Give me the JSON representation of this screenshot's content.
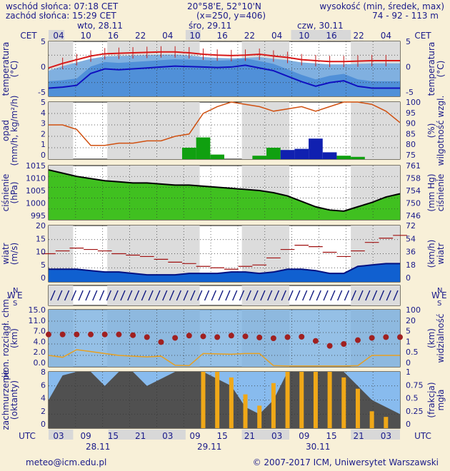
{
  "header": {
    "sunrise": "wschód słońca: 07:18 CET",
    "sunset": "zachód słońca: 15:29 CET",
    "coords": "20°58'E, 52°10'N",
    "grid": "(x=250, y=406)",
    "elev_label": "wysokość (min, średek, max)",
    "elev_values": "74 - 92 - 113 m"
  },
  "top_axis": {
    "tz": "CET",
    "days": [
      "wto, 28.11",
      "śro, 29.11",
      "czw, 30.11"
    ],
    "hours": [
      "04",
      "10",
      "16",
      "22",
      "04",
      "10",
      "16",
      "22",
      "04",
      "10",
      "16",
      "22",
      "04"
    ]
  },
  "bottom_axis": {
    "tz": "UTC",
    "hours": [
      "03",
      "09",
      "15",
      "21",
      "03",
      "09",
      "15",
      "21",
      "03",
      "09",
      "15",
      "21",
      "03"
    ],
    "days": [
      "28.11",
      "29.11",
      "30.11"
    ]
  },
  "panels": {
    "temperature": {
      "left_label": [
        "temperatura",
        "(°C)"
      ],
      "right_label": [
        "temperatura",
        "(°C)"
      ],
      "ticks": [
        "5",
        "0",
        "-5"
      ]
    },
    "precip": {
      "left_label": [
        "opad",
        "(mm/h, kg/m²/h)"
      ],
      "right_label": [
        "(%)",
        "wilgotność wzgl."
      ],
      "ticks_left": [
        "5",
        "4",
        "3",
        "2",
        "1",
        "0"
      ],
      "ticks_right": [
        "100",
        "95",
        "90",
        "85",
        "80",
        "75"
      ]
    },
    "pressure": {
      "left_label": [
        "ciśnienie",
        "(hPa)"
      ],
      "right_label": [
        "(mm Hg)",
        "ciśnienie"
      ],
      "ticks_left": [
        "1015",
        "1010",
        "1005",
        "1000",
        "995"
      ],
      "ticks_right": [
        "761",
        "758",
        "754",
        "750",
        "746"
      ]
    },
    "wind": {
      "left_label": [
        "wiatr",
        "(m/s)"
      ],
      "right_label": [
        "(km/h)",
        "wiatr"
      ],
      "ticks_left": [
        "20",
        "15",
        "10",
        "5",
        "0"
      ],
      "ticks_right": [
        "72",
        "54",
        "36",
        "18",
        "0"
      ]
    },
    "direction": {
      "compass": [
        "N",
        "W",
        "E",
        "S"
      ]
    },
    "clouds_vis": {
      "left_label": [
        "pion. rozciągł. chm.",
        "(km)"
      ],
      "right_label": [
        "(km)",
        "widzialność"
      ],
      "ticks_left": [
        "15.0",
        "11.0",
        "7.0",
        "4.0",
        "2.0",
        "0.0"
      ],
      "ticks_right": [
        "100",
        "20",
        "5",
        "1",
        "0.5",
        "0"
      ]
    },
    "cloud_cover": {
      "left_label": [
        "zachmurzenie",
        "(oktanty)"
      ],
      "right_label": [
        "(frakcja)",
        "mgła"
      ],
      "ticks_left": [
        "8",
        "6",
        "4",
        "2",
        "0"
      ],
      "ticks_right": [
        "1",
        "0.75",
        "0.5",
        "0.25",
        "0"
      ]
    }
  },
  "footer": {
    "email": "meteo@icm.edu.pl",
    "copyright": "© 2007-2017 ICM, Uniwersytet Warszawski"
  },
  "colors": {
    "temp_max": "#d81818",
    "temp_min": "#1010c0",
    "humidity": "#d05010",
    "precip": "#10a010",
    "precip_snow": "#1020b0",
    "pressure": "#000000",
    "wind_avg": "#001080",
    "wind_gust": "#a01010",
    "visibility": "#e8a020",
    "fog": "#f0a818",
    "cloud_height": "#a02020"
  },
  "chart_data": [
    {
      "type": "line",
      "title": "temperatura",
      "ylabel": "°C",
      "ylim": [
        -7,
        5
      ],
      "x": [
        "03",
        "06",
        "09",
        "12",
        "15",
        "18",
        "21",
        "00",
        "03",
        "06",
        "09",
        "12",
        "15",
        "18",
        "21",
        "00",
        "03",
        "06",
        "09",
        "12",
        "15",
        "18",
        "21",
        "00",
        "03",
        "06"
      ],
      "series": [
        {
          "name": "max",
          "values": [
            -0.8,
            0.2,
            1,
            1.8,
            2.3,
            2.4,
            2.5,
            2.6,
            2.7,
            2.7,
            2.5,
            2.2,
            2,
            1.9,
            2,
            2.2,
            1.8,
            1.5,
            1,
            0.8,
            0.6,
            0.6,
            0.7,
            0.8,
            0.8,
            0.8
          ]
        },
        {
          "name": "min",
          "values": [
            -5.2,
            -5,
            -4.6,
            -2,
            -1,
            -1.2,
            -1,
            -0.8,
            -0.6,
            -0.4,
            -0.5,
            -0.6,
            -0.7,
            -0.6,
            -0.2,
            -0.8,
            -1.4,
            -2.6,
            -3.8,
            -4.8,
            -4,
            -3.6,
            -4.8,
            -5.2,
            -5.2,
            -5.2
          ]
        }
      ]
    },
    {
      "type": "line",
      "title": "opad / wilgotność",
      "ylabel": "mm/h",
      "ylim": [
        0,
        5
      ],
      "series": [
        {
          "name": "wilgotność",
          "values": [
            90,
            90,
            88,
            81,
            81,
            82,
            82,
            83,
            83,
            85,
            86,
            95,
            98,
            100,
            99,
            98,
            96,
            97,
            98,
            96,
            98,
            100,
            100,
            99,
            96,
            91
          ]
        },
        {
          "name": "opad",
          "values": [
            0,
            0,
            0,
            0,
            0,
            0,
            0,
            0,
            0,
            0,
            1,
            1.9,
            0.4,
            0,
            0,
            0.3,
            1,
            0.8,
            0.9,
            1.8,
            0.6,
            0.3,
            0.2,
            0,
            0,
            0
          ]
        }
      ]
    },
    {
      "type": "line",
      "title": "ciśnienie",
      "ylabel": "hPa",
      "ylim": [
        992,
        1017
      ],
      "series": [
        {
          "name": "ciśnienie",
          "values": [
            1015,
            1013.5,
            1012,
            1011,
            1010,
            1009.5,
            1009,
            1009,
            1008.5,
            1008,
            1008,
            1007.5,
            1007,
            1006.5,
            1006,
            1005.5,
            1004.5,
            1003,
            1000.5,
            998,
            996.5,
            996,
            998,
            1000,
            1002.5,
            1004
          ]
        }
      ]
    },
    {
      "type": "line",
      "title": "wiatr",
      "ylabel": "m/s",
      "ylim": [
        0,
        20
      ],
      "series": [
        {
          "name": "średni",
          "values": [
            4.5,
            4.5,
            4.5,
            4,
            3.5,
            3.5,
            3,
            2.5,
            2.5,
            2.5,
            3,
            3,
            3,
            3.5,
            3.5,
            3,
            3.5,
            4.5,
            4.5,
            4,
            3,
            3,
            5.5,
            6,
            6.5,
            6.5
          ]
        },
        {
          "name": "porywy",
          "values": [
            10,
            11,
            12,
            11.5,
            11,
            10,
            9.5,
            9,
            8,
            7,
            6.5,
            5.5,
            5,
            4.5,
            5.5,
            6,
            8.5,
            11.5,
            13,
            12.5,
            10.5,
            9,
            11,
            14,
            15.5,
            16.5
          ]
        }
      ]
    },
    {
      "type": "line",
      "title": "widzialność / chmury",
      "ylabel": "km",
      "ylim": [
        0,
        15
      ],
      "series": [
        {
          "name": "wysokość chmur",
          "values": [
            8.5,
            8.5,
            8.5,
            8.5,
            8.5,
            8.5,
            8.3,
            7.8,
            6.5,
            7.6,
            8.2,
            8,
            7.8,
            8.2,
            8,
            7.7,
            7.5,
            7.8,
            7.9,
            6.8,
            5.5,
            6,
            7,
            7.6,
            7.8,
            7.8
          ]
        },
        {
          "name": "widzialność",
          "values": [
            3,
            2.5,
            4.5,
            4,
            3.5,
            3,
            2.8,
            2.6,
            2.8,
            0.4,
            0.3,
            3.5,
            3.4,
            3.3,
            3.5,
            3.5,
            0.3,
            0.2,
            0.2,
            0.2,
            0.2,
            0.2,
            0.3,
            3,
            3,
            3
          ]
        }
      ]
    },
    {
      "type": "bar",
      "title": "zachmurzenie / mgła",
      "ylabel": "oktanty",
      "ylim": [
        0,
        8
      ],
      "series": [
        {
          "name": "zachmurzenie",
          "values": [
            4,
            7.5,
            8,
            8,
            6,
            8,
            8,
            6,
            7,
            8,
            8,
            8,
            7,
            6,
            3,
            2,
            4,
            8,
            8,
            8,
            8,
            8,
            6,
            4,
            3,
            2
          ]
        },
        {
          "name": "mgła",
          "values": [
            0,
            0,
            0,
            0,
            0,
            0,
            0,
            0,
            0,
            0,
            0,
            1,
            1,
            0.9,
            0.6,
            0.4,
            0.8,
            1,
            1,
            1,
            1,
            0.9,
            0.7,
            0.3,
            0.2,
            0
          ]
        }
      ]
    }
  ]
}
